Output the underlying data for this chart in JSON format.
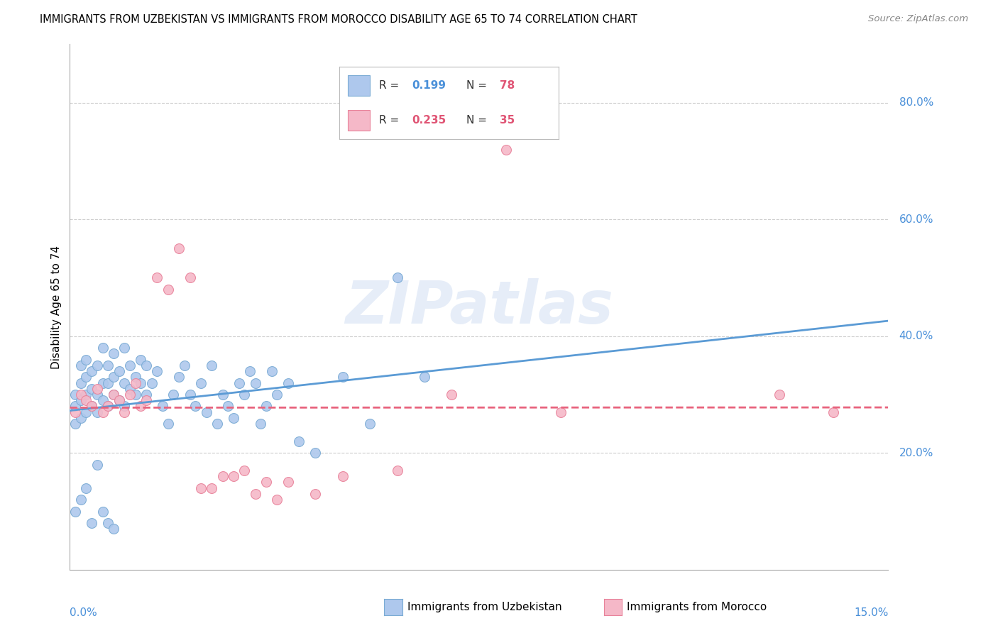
{
  "title": "IMMIGRANTS FROM UZBEKISTAN VS IMMIGRANTS FROM MOROCCO DISABILITY AGE 65 TO 74 CORRELATION CHART",
  "source": "Source: ZipAtlas.com",
  "ylabel": "Disability Age 65 to 74",
  "xmin": 0.0,
  "xmax": 0.15,
  "ymin": 0.0,
  "ymax": 0.9,
  "y_ticks": [
    0.2,
    0.4,
    0.6,
    0.8
  ],
  "y_tick_labels": [
    "20.0%",
    "40.0%",
    "60.0%",
    "80.0%"
  ],
  "x_tick_labels": [
    "0.0%",
    "15.0%"
  ],
  "watermark": "ZIPatlas",
  "uzbekistan_color": "#aec8ed",
  "uzbekistan_edge": "#7aabd4",
  "morocco_color": "#f5b8c8",
  "morocco_edge": "#e8829a",
  "uzb_line_color": "#5b9bd5",
  "mor_line_color": "#e8637d",
  "uzb_R": "0.199",
  "uzb_N": "78",
  "mor_R": "0.235",
  "mor_N": "35",
  "legend_label_uzb": "Immigrants from Uzbekistan",
  "legend_label_mor": "Immigrants from Morocco",
  "uzbekistan_x": [
    0.001,
    0.001,
    0.001,
    0.002,
    0.002,
    0.002,
    0.002,
    0.003,
    0.003,
    0.003,
    0.003,
    0.004,
    0.004,
    0.004,
    0.005,
    0.005,
    0.005,
    0.006,
    0.006,
    0.006,
    0.007,
    0.007,
    0.007,
    0.008,
    0.008,
    0.008,
    0.009,
    0.009,
    0.01,
    0.01,
    0.01,
    0.011,
    0.011,
    0.012,
    0.012,
    0.013,
    0.013,
    0.014,
    0.014,
    0.015,
    0.016,
    0.017,
    0.018,
    0.019,
    0.02,
    0.021,
    0.022,
    0.023,
    0.024,
    0.025,
    0.026,
    0.027,
    0.028,
    0.029,
    0.03,
    0.031,
    0.032,
    0.033,
    0.034,
    0.035,
    0.036,
    0.037,
    0.038,
    0.04,
    0.042,
    0.045,
    0.05,
    0.055,
    0.06,
    0.065,
    0.001,
    0.002,
    0.003,
    0.004,
    0.005,
    0.006,
    0.007,
    0.008
  ],
  "uzbekistan_y": [
    0.25,
    0.28,
    0.3,
    0.26,
    0.29,
    0.32,
    0.35,
    0.27,
    0.3,
    0.33,
    0.36,
    0.28,
    0.31,
    0.34,
    0.27,
    0.3,
    0.35,
    0.29,
    0.32,
    0.38,
    0.28,
    0.32,
    0.35,
    0.3,
    0.33,
    0.37,
    0.29,
    0.34,
    0.28,
    0.32,
    0.38,
    0.31,
    0.35,
    0.3,
    0.33,
    0.32,
    0.36,
    0.3,
    0.35,
    0.32,
    0.34,
    0.28,
    0.25,
    0.3,
    0.33,
    0.35,
    0.3,
    0.28,
    0.32,
    0.27,
    0.35,
    0.25,
    0.3,
    0.28,
    0.26,
    0.32,
    0.3,
    0.34,
    0.32,
    0.25,
    0.28,
    0.34,
    0.3,
    0.32,
    0.22,
    0.2,
    0.33,
    0.25,
    0.5,
    0.33,
    0.1,
    0.12,
    0.14,
    0.08,
    0.18,
    0.1,
    0.08,
    0.07
  ],
  "morocco_x": [
    0.001,
    0.002,
    0.003,
    0.004,
    0.005,
    0.006,
    0.007,
    0.008,
    0.009,
    0.01,
    0.011,
    0.012,
    0.013,
    0.014,
    0.016,
    0.018,
    0.02,
    0.022,
    0.024,
    0.026,
    0.028,
    0.03,
    0.032,
    0.034,
    0.036,
    0.038,
    0.04,
    0.045,
    0.05,
    0.06,
    0.07,
    0.08,
    0.09,
    0.13,
    0.14
  ],
  "morocco_y": [
    0.27,
    0.3,
    0.29,
    0.28,
    0.31,
    0.27,
    0.28,
    0.3,
    0.29,
    0.27,
    0.3,
    0.32,
    0.28,
    0.29,
    0.5,
    0.48,
    0.55,
    0.5,
    0.14,
    0.14,
    0.16,
    0.16,
    0.17,
    0.13,
    0.15,
    0.12,
    0.15,
    0.13,
    0.16,
    0.17,
    0.3,
    0.72,
    0.27,
    0.3,
    0.27
  ]
}
